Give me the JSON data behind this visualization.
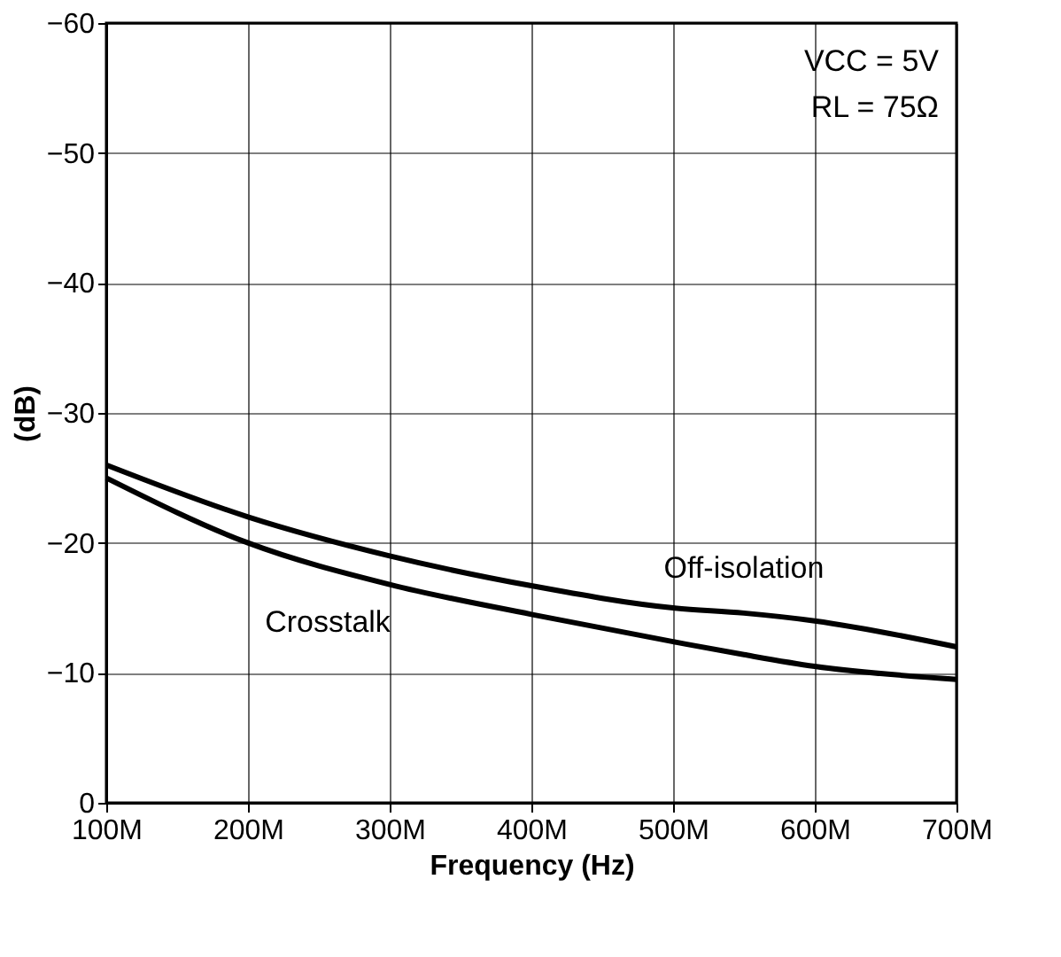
{
  "chart_data": {
    "type": "line",
    "xlabel": "Frequency (Hz)",
    "ylabel": "(dB)",
    "x": [
      100000000,
      200000000,
      300000000,
      400000000,
      500000000,
      550000000,
      600000000,
      700000000
    ],
    "series": [
      {
        "name": "Off-isolation",
        "color": "#000000",
        "values": [
          -26,
          -22,
          -19,
          -16.7,
          -15,
          -14.6,
          -14,
          -12
        ]
      },
      {
        "name": "Crosstalk",
        "color": "#000000",
        "values": [
          -25,
          -20,
          -16.8,
          -14.5,
          -12.4,
          -11.4,
          -10.5,
          -9.5
        ]
      }
    ],
    "xlim": [
      100000000,
      700000000
    ],
    "xticks": [
      {
        "value": 100000000,
        "label": "100M"
      },
      {
        "value": 200000000,
        "label": "200M"
      },
      {
        "value": 300000000,
        "label": "300M"
      },
      {
        "value": 400000000,
        "label": "400M"
      },
      {
        "value": 500000000,
        "label": "500M"
      },
      {
        "value": 600000000,
        "label": "600M"
      },
      {
        "value": 700000000,
        "label": "700M"
      }
    ],
    "ylim": [
      0,
      -60
    ],
    "yticks": [
      {
        "value": -60,
        "label": "−60"
      },
      {
        "value": -50,
        "label": "−50"
      },
      {
        "value": -40,
        "label": "−40"
      },
      {
        "value": -30,
        "label": "−30"
      },
      {
        "value": -20,
        "label": "−20"
      },
      {
        "value": -10,
        "label": "−10"
      },
      0
    ],
    "annotations": [
      "VCC = 5V",
      "RL = 75Ω"
    ],
    "grid": true,
    "legend": false,
    "marker": "none",
    "line_style": "solid"
  }
}
